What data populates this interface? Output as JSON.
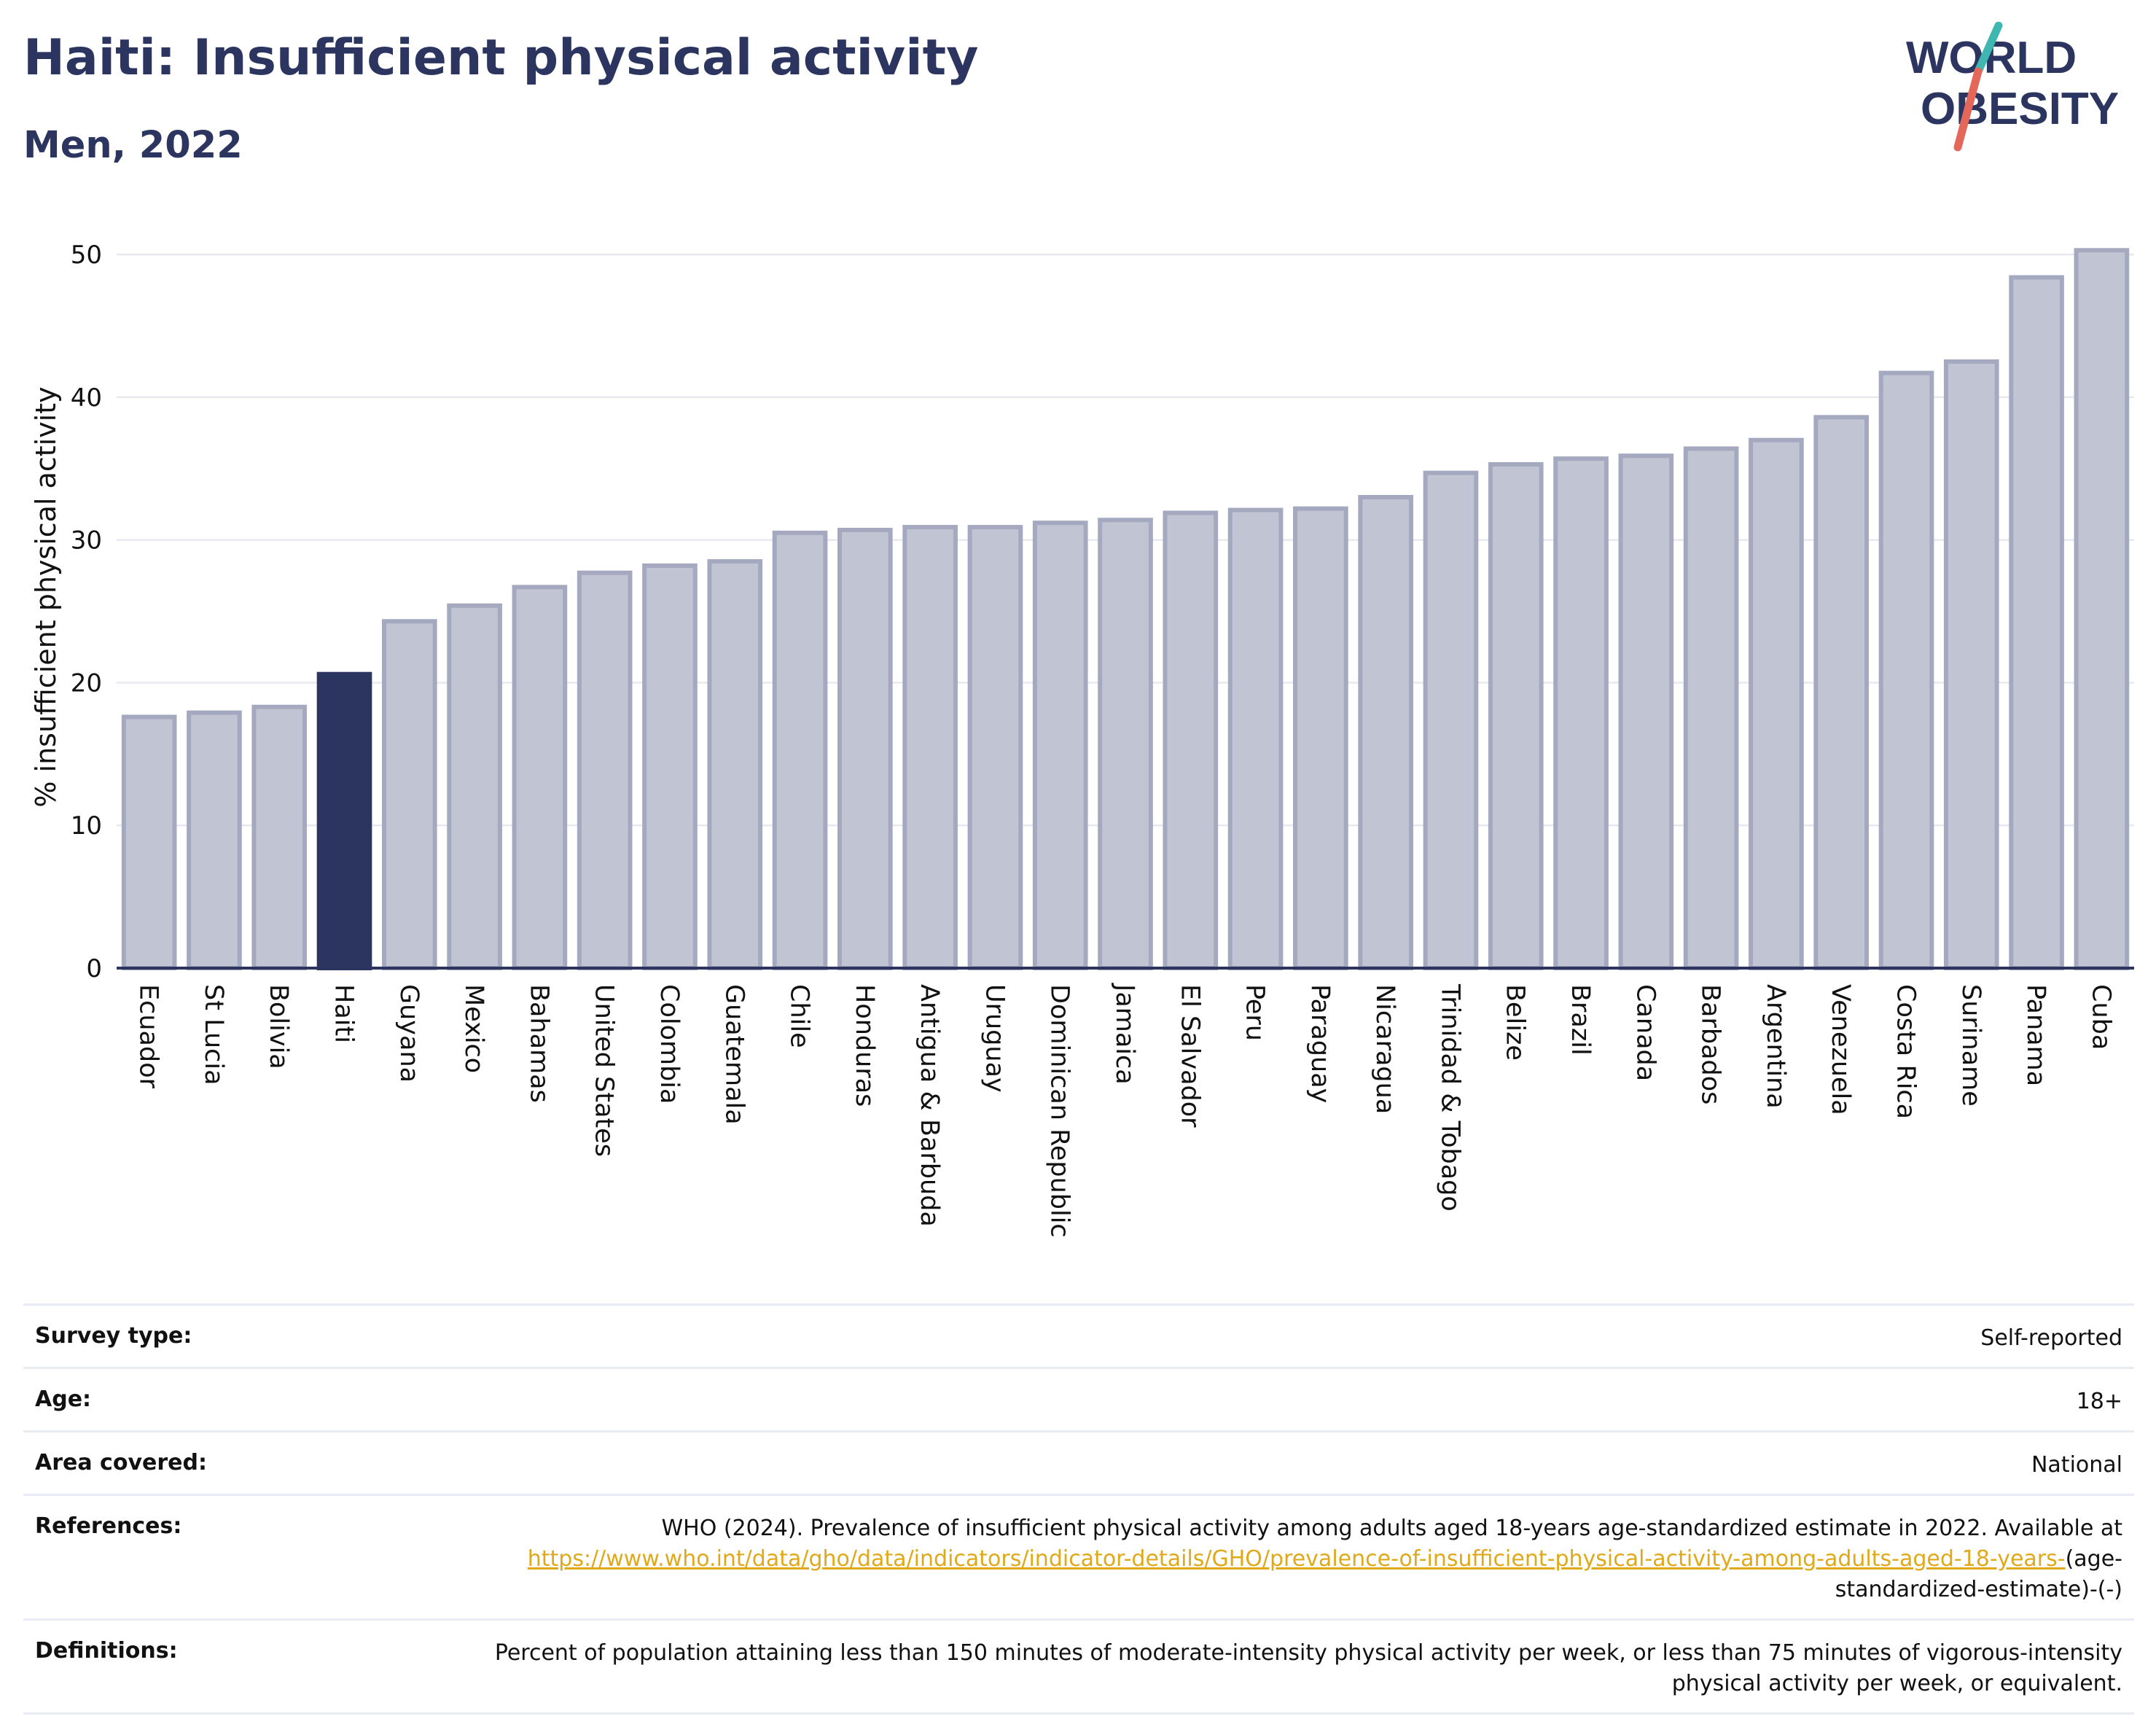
{
  "header": {
    "title": "Haiti: Insufficient physical activity",
    "subtitle": "Men, 2022"
  },
  "logo": {
    "line1": "WORLD",
    "line2": "OBESITY",
    "color_text": "#2b3560",
    "color_slash_top": "#3fb6b0",
    "color_slash_bottom": "#e5675a"
  },
  "chart_data": {
    "type": "bar",
    "title": "Haiti: Insufficient physical activity",
    "subtitle": "Men, 2022",
    "xlabel": "",
    "ylabel": "% insufficient physical activity",
    "ylim": [
      0,
      52
    ],
    "yticks": [
      0,
      10,
      20,
      30,
      40,
      50
    ],
    "grid": true,
    "highlight": "Haiti",
    "colors": {
      "bar": "#c1c4d2",
      "bar_stroke": "#a5a9c0",
      "highlight": "#2b3560",
      "grid": "#e7e9ef",
      "axis": "#2b3560"
    },
    "categories": [
      "Ecuador",
      "St Lucia",
      "Bolivia",
      "Haiti",
      "Guyana",
      "Mexico",
      "Bahamas",
      "United States",
      "Colombia",
      "Guatemala",
      "Chile",
      "Honduras",
      "Antigua & Barbuda",
      "Uruguay",
      "Dominican Republic",
      "Jamaica",
      "El Salvador",
      "Peru",
      "Paraguay",
      "Nicaragua",
      "Trinidad & Tobago",
      "Belize",
      "Brazil",
      "Canada",
      "Barbados",
      "Argentina",
      "Venezuela",
      "Costa Rica",
      "Suriname",
      "Panama",
      "Cuba"
    ],
    "values": [
      17.6,
      17.9,
      18.3,
      20.6,
      24.3,
      25.4,
      26.7,
      27.7,
      28.2,
      28.5,
      30.5,
      30.7,
      30.9,
      30.9,
      31.2,
      31.4,
      31.9,
      32.1,
      32.2,
      33.0,
      34.7,
      35.3,
      35.7,
      35.9,
      36.4,
      37.0,
      38.6,
      41.7,
      42.5,
      48.4,
      50.3
    ]
  },
  "meta": {
    "rows": [
      {
        "label": "Survey type:",
        "value": "Self-reported"
      },
      {
        "label": "Age:",
        "value": "18+"
      },
      {
        "label": "Area covered:",
        "value": "National"
      }
    ],
    "references": {
      "label": "References:",
      "text_before": "WHO (2024). Prevalence of insufficient physical activity among adults aged 18-years age-standardized estimate in 2022. Available at",
      "link_text": "https://www.who.int/data/gho/data/indicators/indicator-details/GHO/prevalence-of-insufficient-physical-activity-among-adults-aged-18-years-",
      "text_after": "(age-standardized-estimate)-(-)"
    },
    "definitions": {
      "label": "Definitions:",
      "value": "Percent of population attaining less than 150 minutes of moderate-intensity physical activity per week, or less than 75 minutes of vigorous-intensity physical activity per week, or equivalent."
    }
  }
}
